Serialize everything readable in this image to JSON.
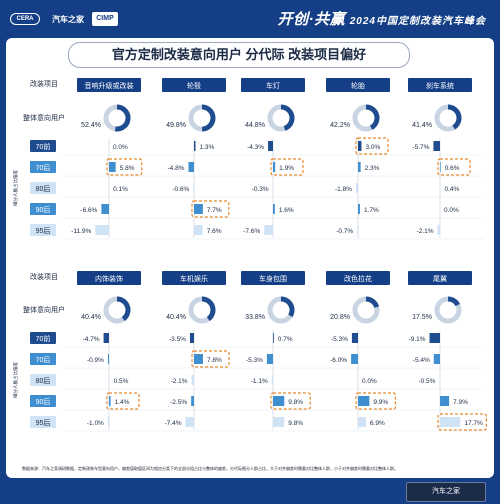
{
  "header": {
    "logo_1": "CERA",
    "logo_2": "汽车之家",
    "logo_3": "CIMP",
    "event_title": "开创·共赢",
    "event_subtitle": "2024中国定制改装汽车峰会"
  },
  "title": "官方定制改装意向用户 分代际 改装项目偏好",
  "row_labels": {
    "project": "改装项目",
    "intent": "整体意向用户",
    "side_label": "细分人群占比偏差"
  },
  "generations": [
    "70前",
    "70后",
    "80后",
    "90后",
    "95后"
  ],
  "colors": {
    "header_bg": "#143f86",
    "pie_main": "#1e4c8f",
    "pie_rest": "#c9d4e3",
    "bar_dark": "#1e4c8f",
    "bar_mid": "#3f8fd0",
    "bar_light": "#cfe3f4",
    "highlight": "#e8892b"
  },
  "chart_data": [
    {
      "type": "bar",
      "series": [
        {
          "name": "音响升级或改装",
          "intent_pct": 52.4,
          "values": [
            0.0,
            5.8,
            0.1,
            -6.6,
            -11.9
          ],
          "highlight": [
            1
          ]
        },
        {
          "name": "轮毂",
          "intent_pct": 49.8,
          "values": [
            1.3,
            -4.8,
            -0.6,
            7.7,
            7.6
          ],
          "highlight": [
            3
          ]
        },
        {
          "name": "车灯",
          "intent_pct": 44.8,
          "values": [
            -4.3,
            1.9,
            -0.3,
            1.6,
            -7.6
          ],
          "highlight": [
            1
          ]
        },
        {
          "name": "轮胎",
          "intent_pct": 42.2,
          "values": [
            3.0,
            2.3,
            -1.8,
            1.7,
            -0.7
          ],
          "highlight": [
            0
          ]
        },
        {
          "name": "刹车系统",
          "intent_pct": 41.4,
          "values": [
            -5.7,
            0.6,
            0.4,
            0.0,
            -2.1
          ],
          "highlight": [
            1
          ]
        }
      ]
    },
    {
      "type": "bar",
      "series": [
        {
          "name": "内饰装饰",
          "intent_pct": 40.4,
          "values": [
            -4.7,
            -0.9,
            0.5,
            1.4,
            -1.0
          ],
          "highlight": [
            3
          ]
        },
        {
          "name": "车机娱乐",
          "intent_pct": 40.4,
          "values": [
            -3.5,
            7.8,
            -2.1,
            -2.5,
            -7.4
          ],
          "highlight": [
            1
          ]
        },
        {
          "name": "车身包围",
          "intent_pct": 33.8,
          "values": [
            0.7,
            -5.3,
            -1.1,
            9.8,
            9.8
          ],
          "highlight": [
            3
          ]
        },
        {
          "name": "改色拉花",
          "intent_pct": 20.8,
          "values": [
            -5.3,
            -6.0,
            0.0,
            9.9,
            6.9
          ],
          "highlight": [
            3
          ]
        },
        {
          "name": "尾翼",
          "intent_pct": 17.5,
          "values": [
            -9.1,
            -5.4,
            -0.5,
            7.9,
            17.7
          ],
          "highlight": [
            4
          ]
        }
      ]
    }
  ],
  "footnote": "数据来源：汽车之家调研数据，定制改装车型意向用户，偏差值取值区间为相应分类下的全部分组占比与整体的偏差，分代际细分人群占比，大于对齐偏差时需要对比整体人群，小于对齐偏差时需要对比整体人群。",
  "footer_logo": "汽车之家"
}
